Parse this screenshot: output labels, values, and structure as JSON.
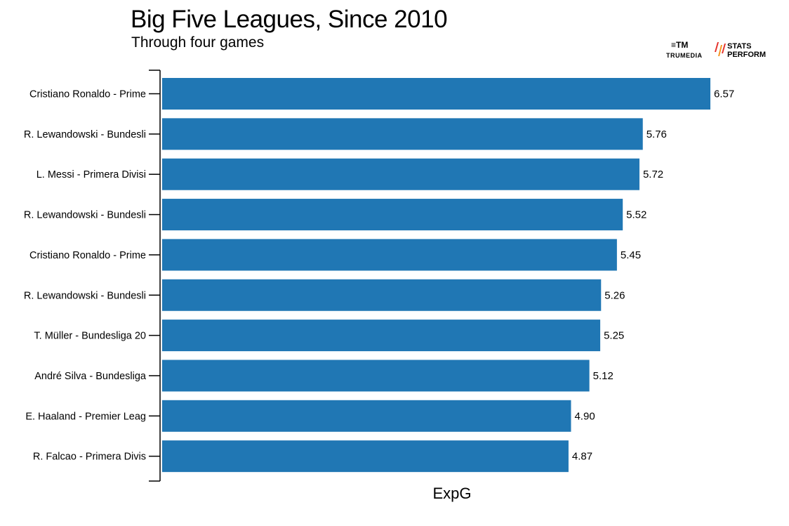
{
  "header": {
    "title": "Big Five Leagues, Since 2010",
    "subtitle": "Through four games"
  },
  "logos": {
    "trumedia_label": "TRUMEDIA",
    "trumedia_mark": "≡TM",
    "stats_line1": "STATS",
    "stats_line2": "PERFORM"
  },
  "colors": {
    "bar": "#2077b4",
    "axis": "#000000",
    "stats_accent_red": "#e4312b",
    "stats_accent_orange": "#f7941d"
  },
  "chart_data": {
    "type": "bar",
    "orientation": "horizontal",
    "xlabel": "ExpG",
    "ylabel": "",
    "title": "",
    "xlim": [
      0,
      6.57
    ],
    "grid": false,
    "categories": [
      "Cristiano Ronaldo - Prime",
      "R. Lewandowski - Bundesli",
      "L. Messi - Primera Divisi",
      "R. Lewandowski - Bundesli",
      "Cristiano Ronaldo - Prime",
      "R. Lewandowski - Bundesli",
      "T. Müller - Bundesliga 20",
      "André Silva - Bundesliga",
      "E. Haaland - Premier Leag",
      "R. Falcao - Primera Divis"
    ],
    "values": [
      6.57,
      5.76,
      5.72,
      5.52,
      5.45,
      5.26,
      5.25,
      5.12,
      4.9,
      4.87
    ],
    "value_labels": [
      "6.57",
      "5.76",
      "5.72",
      "5.52",
      "5.45",
      "5.26",
      "5.25",
      "5.12",
      "4.90",
      "4.87"
    ]
  }
}
